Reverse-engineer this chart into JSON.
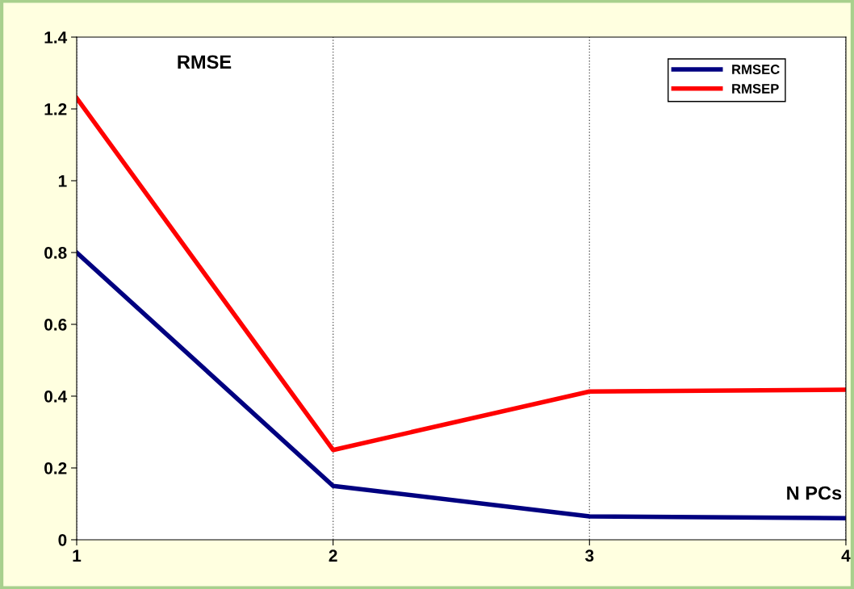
{
  "chart_data": {
    "type": "line",
    "xlabel": "N PCs",
    "ylabel": "RMSE",
    "x": [
      1,
      2,
      3,
      4
    ],
    "series": [
      {
        "name": "RMSEC",
        "color": "#000080",
        "values": [
          0.8,
          0.15,
          0.065,
          0.06
        ]
      },
      {
        "name": "RMSEP",
        "color": "#ff0000",
        "values": [
          1.23,
          0.25,
          0.413,
          0.418
        ]
      }
    ],
    "xlim": [
      1,
      4
    ],
    "xticks": [
      1,
      2,
      3,
      4
    ],
    "ylim": [
      0,
      1.4
    ],
    "yticks": [
      0,
      0.2,
      0.4,
      0.6,
      0.8,
      1,
      1.2,
      1.4
    ],
    "grid": "x",
    "legend": "top right",
    "marker": "none",
    "line_style": "solid"
  }
}
